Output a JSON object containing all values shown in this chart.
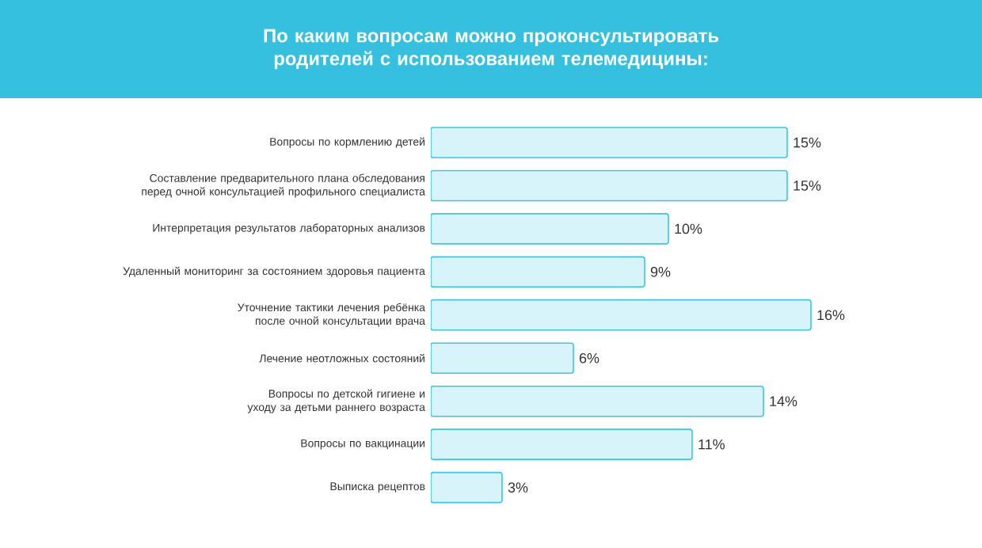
{
  "chart_data": {
    "type": "bar",
    "orientation": "horizontal",
    "title": "По каким вопросам можно проконсультировать родителей с использованием телемедицины:",
    "categories": [
      "Вопросы по кормлению детей",
      "Составление предварительного плана обследования перед очной консультацией профильного специалиста",
      "Интерпретация результатов лабораторных анализов",
      "Удаленный мониторинг за состоянием здоровья пациента",
      "Уточнение тактики лечения ребёнка после очной консультации врача",
      "Лечение неотложных состояний",
      "Вопросы по детской гигиене и уходу за детьми раннего возраста",
      "Вопросы по вакцинации",
      "Выписка рецептов"
    ],
    "values": [
      15,
      15,
      10,
      9,
      16,
      6,
      14,
      11,
      3
    ],
    "value_labels": [
      "15%",
      "15%",
      "10%",
      "9%",
      "16%",
      "6%",
      "14%",
      "11%",
      "3%"
    ],
    "color": "#d8f4fb"
  }
}
